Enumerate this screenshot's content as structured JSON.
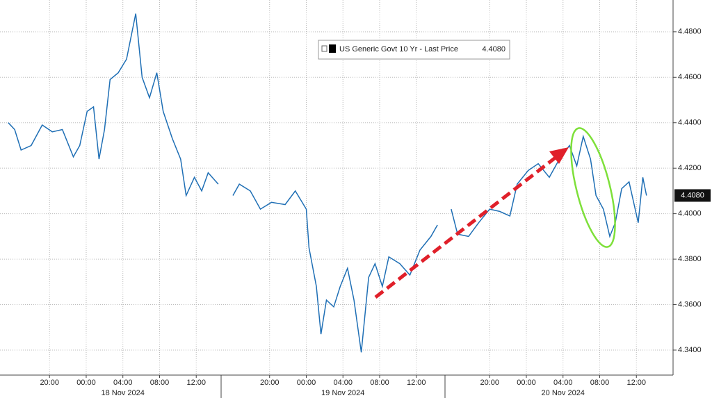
{
  "chart_data": {
    "type": "line",
    "series": [
      {
        "name": "US Generic Govt 10 Yr - Last Price",
        "color": "#1f6fb5",
        "values": [
          4.44,
          4.437,
          4.428,
          4.43,
          4.439,
          4.436,
          4.437,
          4.425,
          4.43,
          4.445,
          4.447,
          4.424,
          4.437,
          4.459,
          4.462,
          4.468,
          4.488,
          4.46,
          4.451,
          4.462,
          4.445,
          4.433,
          4.424,
          4.408,
          4.416,
          4.41,
          4.418,
          4.413,
          null,
          4.408,
          4.413,
          4.41,
          4.402,
          4.405,
          4.404,
          4.41,
          4.402,
          4.385,
          4.368,
          4.347,
          4.362,
          4.359,
          4.368,
          4.376,
          4.362,
          4.339,
          4.372,
          4.378,
          4.368,
          4.381,
          4.378,
          4.373,
          4.384,
          4.39,
          4.395,
          null,
          4.402,
          4.391,
          4.39,
          4.396,
          4.402,
          4.401,
          4.399,
          4.413,
          4.419,
          4.422,
          4.416,
          4.424,
          4.43,
          4.421,
          4.434,
          4.424,
          4.408,
          4.402,
          4.39,
          4.396,
          4.411,
          4.414,
          4.396,
          4.416,
          4.408
        ]
      }
    ],
    "x": [
      -8.5,
      -7.8,
      -7.1,
      -6.0,
      -4.8,
      -3.7,
      -2.6,
      -1.4,
      -0.7,
      0.1,
      0.8,
      1.4,
      2.0,
      2.6,
      3.5,
      4.4,
      5.4,
      6.1,
      6.9,
      7.7,
      8.4,
      9.4,
      10.3,
      10.9,
      11.8,
      12.6,
      13.3,
      14.4,
      null,
      16.0,
      16.7,
      17.9,
      19.0,
      20.2,
      21.7,
      22.8,
      24.0,
      24.3,
      25.1,
      25.6,
      26.2,
      27.0,
      27.7,
      28.5,
      29.2,
      30.0,
      30.8,
      31.5,
      32.3,
      33.0,
      34.2,
      35.3,
      36.4,
      37.6,
      38.3,
      null,
      39.8,
      40.5,
      41.7,
      42.8,
      44.0,
      45.1,
      46.2,
      47.0,
      48.2,
      49.3,
      50.5,
      51.6,
      52.7,
      53.5,
      54.2,
      55.0,
      55.6,
      56.4,
      57.1,
      57.7,
      58.4,
      59.2,
      60.2,
      60.7,
      61.1
    ],
    "last_value": {
      "value": 4.408,
      "label": "4.4080"
    },
    "xlim": [
      -9.4,
      64
    ],
    "xticks": [
      {
        "value": -4,
        "label": "20:00"
      },
      {
        "value": 0,
        "label": "00:00"
      },
      {
        "value": 4,
        "label": "04:00"
      },
      {
        "value": 8,
        "label": "08:00"
      },
      {
        "value": 12,
        "label": "12:00"
      },
      {
        "value": 20,
        "label": "20:00"
      },
      {
        "value": 24,
        "label": "00:00"
      },
      {
        "value": 28,
        "label": "04:00"
      },
      {
        "value": 32,
        "label": "08:00"
      },
      {
        "value": 36,
        "label": "12:00"
      },
      {
        "value": 44,
        "label": "20:00"
      },
      {
        "value": 48,
        "label": "00:00"
      },
      {
        "value": 52,
        "label": "04:00"
      },
      {
        "value": 56,
        "label": "08:00"
      },
      {
        "value": 60,
        "label": "12:00"
      }
    ],
    "dates": [
      {
        "value": 4,
        "label": "18 Nov 2024"
      },
      {
        "value": 28,
        "label": "19 Nov 2024"
      },
      {
        "value": 52,
        "label": "20 Nov 2024"
      }
    ],
    "ylim": [
      4.329,
      4.494
    ],
    "yticks": [
      {
        "value": 4.34,
        "label": "4.3400"
      },
      {
        "value": 4.36,
        "label": "4.3600"
      },
      {
        "value": 4.38,
        "label": "4.3800"
      },
      {
        "value": 4.4,
        "label": "4.4000"
      },
      {
        "value": 4.42,
        "label": "4.4200"
      },
      {
        "value": 4.44,
        "label": "4.4400"
      },
      {
        "value": 4.46,
        "label": "4.4600"
      },
      {
        "value": 4.48,
        "label": "4.4800"
      }
    ],
    "grid": true
  }
}
